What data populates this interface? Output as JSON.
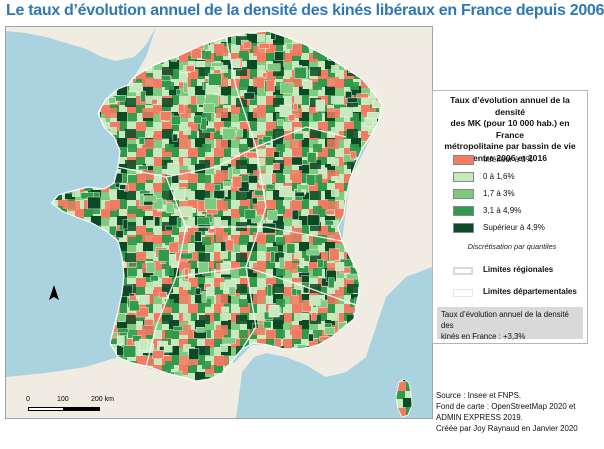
{
  "title": "Le taux d’évolution annuel de la densité des kinés libéraux en France depuis 2006",
  "legend": {
    "title_lines": [
      "Taux d’évolution annuel de la densité",
      "des MK (pour 10 000 hab.) en France",
      "métropolitaine par bassin de vie",
      "entre 2006 et 2016"
    ],
    "classes": [
      {
        "label": "Inférieur à 0%",
        "color": "#f47a62"
      },
      {
        "label": "0 à 1,6%",
        "color": "#c8e9bd"
      },
      {
        "label": "1,7 à 3%",
        "color": "#7ccb7e"
      },
      {
        "label": "3,1 à 4,9%",
        "color": "#2f9a4a"
      },
      {
        "label": "Supérieur à 4,9%",
        "color": "#0b4a25"
      }
    ],
    "note": "Discrétisation par quantiles",
    "boundaries": [
      {
        "label": "Limites régionales"
      },
      {
        "label": "Limites départementales"
      }
    ],
    "average_lines": [
      "Taux d’évolution annuel de la densité des",
      "kinés en France : +3,3%"
    ]
  },
  "scale": {
    "ticks": [
      "0",
      "100",
      "200 km"
    ]
  },
  "sources": [
    "Source : Insee et FNPS.",
    "Fond de carte : OpenStreetMap 2020 et",
    "ADMIN EXPRESS 2019.",
    "Créée par Joy Raynaud en Janvier 2020"
  ],
  "colors": {
    "sea": "#aad3df",
    "land": "#f0ece2",
    "title": "#2e78b7"
  }
}
